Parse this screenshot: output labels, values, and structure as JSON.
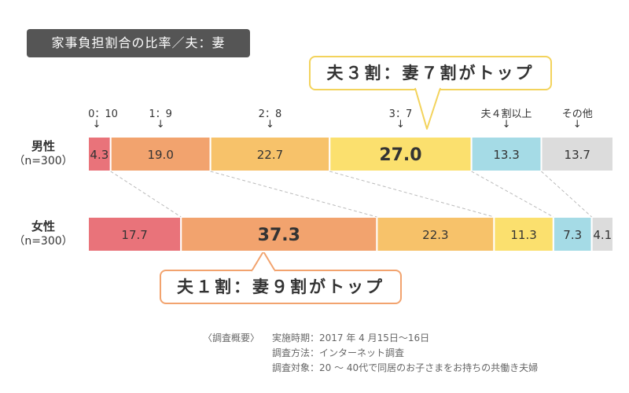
{
  "chart_data": {
    "type": "bar",
    "orientation": "horizontal-stacked-100",
    "title": "家事負担割合の比率／夫：妻",
    "categories": [
      "0：10",
      "1：9",
      "2：8",
      "3：7",
      "夫４割以上",
      "その他"
    ],
    "category_arrow": "↓",
    "colors": [
      "#e9737a",
      "#f2a36e",
      "#f7c26a",
      "#fbe06e",
      "#a5dbe6",
      "#dcdcdc"
    ],
    "series": [
      {
        "gender": "男性",
        "n": "（n=300）",
        "values": [
          4.3,
          19.0,
          22.7,
          27.0,
          13.3,
          13.7
        ],
        "labels": [
          "4.3",
          "19.0",
          "22.7",
          "27.0",
          "13.3",
          "13.7"
        ]
      },
      {
        "gender": "女性",
        "n": "（n=300）",
        "values": [
          17.7,
          37.3,
          22.3,
          11.3,
          7.3,
          4.1
        ],
        "labels": [
          "17.7",
          "37.3",
          "22.3",
          "11.3",
          "7.3",
          "4.1"
        ]
      }
    ],
    "highlight": {
      "male_index": 3,
      "female_index": 1
    }
  },
  "callouts": {
    "male": "夫３割：妻７割がトップ",
    "female": "夫１割：妻９割がトップ"
  },
  "note": {
    "label": "〈調査概要〉",
    "period_label": "実施時期：",
    "period": "2017 年 4 月15日〜16日",
    "method_label": "調査方法：",
    "method": "インターネット調査",
    "target_label": "調査対象：",
    "target": "20 〜 40代で同居のお子さまをお持ちの共働き夫婦"
  }
}
